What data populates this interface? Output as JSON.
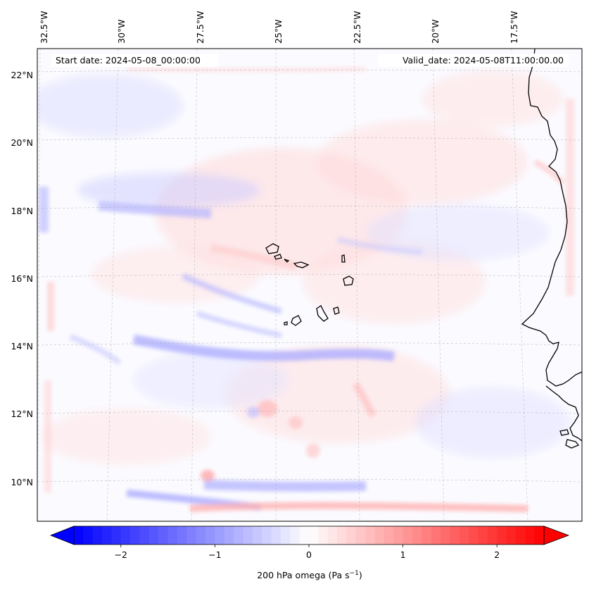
{
  "map": {
    "top_labels": [
      "32.5°W",
      "30°W",
      "27.5°W",
      "25°W",
      "22.5°W",
      "20°W",
      "17.5°W"
    ],
    "left_labels": [
      "22°N",
      "20°N",
      "18°N",
      "16°N",
      "14°N",
      "12°N",
      "10°N"
    ],
    "start_date": "Start date: 2024-05-08_00:00:00",
    "valid_date": "Valid_date: 2024-05-08T11:00:00.00",
    "field": "200 hPa omega",
    "colormap": "bwr",
    "colors": {
      "negative": "#0000ff",
      "zero": "#ffffff",
      "positive": "#ff0000"
    }
  },
  "colorbar": {
    "label_main": "200 hPa omega (Pa s",
    "label_sup": "−1",
    "label_close": ")",
    "min": -2.5,
    "max": 2.5,
    "ticks": [
      -2,
      -1,
      0,
      1,
      2
    ],
    "tick_labels": [
      "−2",
      "−1",
      "0",
      "1",
      "2"
    ]
  }
}
